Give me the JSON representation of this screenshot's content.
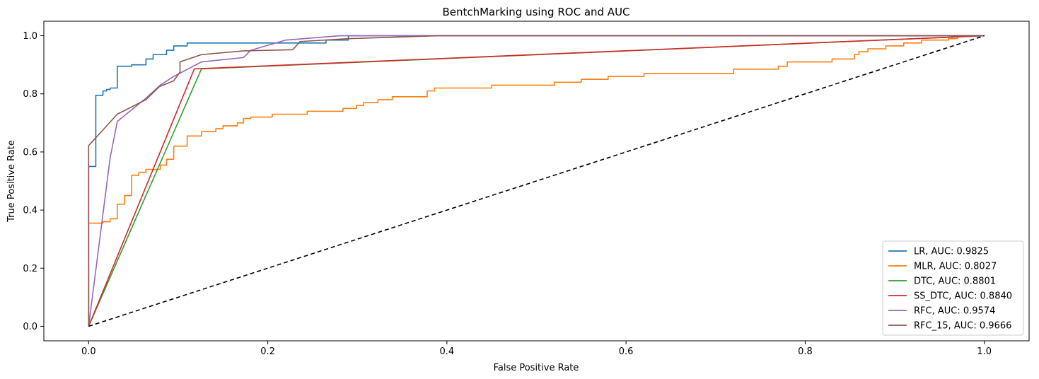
{
  "chart_data": {
    "type": "line",
    "title": "BentchMarking using ROC and AUC",
    "xlabel": "False Positive Rate",
    "ylabel": "True Positive Rate",
    "xlim": [
      -0.05,
      1.05
    ],
    "ylim": [
      -0.05,
      1.05
    ],
    "xticks": [
      0.0,
      0.2,
      0.4,
      0.6,
      0.8,
      1.0
    ],
    "xtick_labels": [
      "0.0",
      "0.2",
      "0.4",
      "0.6",
      "0.8",
      "1.0"
    ],
    "yticks": [
      0.0,
      0.2,
      0.4,
      0.6,
      0.8,
      1.0
    ],
    "ytick_labels": [
      "0.0",
      "0.2",
      "0.4",
      "0.6",
      "0.8",
      "1.0"
    ],
    "grid": false,
    "legend_position": "lower right",
    "reference_line": {
      "x": [
        0,
        1
      ],
      "y": [
        0,
        1
      ],
      "color": "#000000",
      "style": "dashed"
    },
    "series": [
      {
        "name": "LR, AUC: 0.9825",
        "color": "#1f77b4",
        "step": true,
        "points": [
          [
            0,
            0
          ],
          [
            0,
            0.55
          ],
          [
            0.008,
            0.55
          ],
          [
            0.008,
            0.795
          ],
          [
            0.016,
            0.795
          ],
          [
            0.016,
            0.81
          ],
          [
            0.02,
            0.81
          ],
          [
            0.02,
            0.815
          ],
          [
            0.024,
            0.815
          ],
          [
            0.024,
            0.82
          ],
          [
            0.032,
            0.82
          ],
          [
            0.032,
            0.895
          ],
          [
            0.048,
            0.895
          ],
          [
            0.048,
            0.9
          ],
          [
            0.064,
            0.9
          ],
          [
            0.064,
            0.92
          ],
          [
            0.072,
            0.92
          ],
          [
            0.072,
            0.935
          ],
          [
            0.087,
            0.935
          ],
          [
            0.087,
            0.95
          ],
          [
            0.095,
            0.95
          ],
          [
            0.095,
            0.965
          ],
          [
            0.11,
            0.965
          ],
          [
            0.11,
            0.975
          ],
          [
            0.265,
            0.975
          ],
          [
            0.265,
            0.985
          ],
          [
            0.29,
            0.985
          ],
          [
            0.29,
            1.0
          ],
          [
            1.0,
            1.0
          ]
        ]
      },
      {
        "name": "MLR, AUC: 0.8027",
        "color": "#ff7f0e",
        "step": true,
        "points": [
          [
            0,
            0
          ],
          [
            0,
            0.355
          ],
          [
            0.016,
            0.355
          ],
          [
            0.016,
            0.36
          ],
          [
            0.024,
            0.36
          ],
          [
            0.024,
            0.37
          ],
          [
            0.032,
            0.37
          ],
          [
            0.032,
            0.42
          ],
          [
            0.04,
            0.42
          ],
          [
            0.04,
            0.45
          ],
          [
            0.048,
            0.45
          ],
          [
            0.048,
            0.52
          ],
          [
            0.056,
            0.52
          ],
          [
            0.056,
            0.53
          ],
          [
            0.064,
            0.53
          ],
          [
            0.064,
            0.54
          ],
          [
            0.08,
            0.54
          ],
          [
            0.08,
            0.555
          ],
          [
            0.087,
            0.555
          ],
          [
            0.087,
            0.575
          ],
          [
            0.095,
            0.575
          ],
          [
            0.095,
            0.62
          ],
          [
            0.11,
            0.62
          ],
          [
            0.11,
            0.655
          ],
          [
            0.126,
            0.655
          ],
          [
            0.126,
            0.67
          ],
          [
            0.142,
            0.67
          ],
          [
            0.142,
            0.68
          ],
          [
            0.15,
            0.68
          ],
          [
            0.15,
            0.69
          ],
          [
            0.166,
            0.69
          ],
          [
            0.166,
            0.7
          ],
          [
            0.173,
            0.7
          ],
          [
            0.173,
            0.715
          ],
          [
            0.181,
            0.715
          ],
          [
            0.181,
            0.72
          ],
          [
            0.205,
            0.72
          ],
          [
            0.205,
            0.73
          ],
          [
            0.244,
            0.73
          ],
          [
            0.244,
            0.74
          ],
          [
            0.284,
            0.74
          ],
          [
            0.284,
            0.75
          ],
          [
            0.299,
            0.75
          ],
          [
            0.299,
            0.76
          ],
          [
            0.307,
            0.76
          ],
          [
            0.307,
            0.77
          ],
          [
            0.323,
            0.77
          ],
          [
            0.323,
            0.78
          ],
          [
            0.339,
            0.78
          ],
          [
            0.339,
            0.79
          ],
          [
            0.378,
            0.79
          ],
          [
            0.378,
            0.81
          ],
          [
            0.386,
            0.81
          ],
          [
            0.386,
            0.82
          ],
          [
            0.45,
            0.82
          ],
          [
            0.45,
            0.83
          ],
          [
            0.52,
            0.83
          ],
          [
            0.52,
            0.84
          ],
          [
            0.55,
            0.84
          ],
          [
            0.55,
            0.85
          ],
          [
            0.58,
            0.85
          ],
          [
            0.58,
            0.86
          ],
          [
            0.62,
            0.86
          ],
          [
            0.62,
            0.87
          ],
          [
            0.72,
            0.87
          ],
          [
            0.72,
            0.885
          ],
          [
            0.77,
            0.885
          ],
          [
            0.77,
            0.895
          ],
          [
            0.78,
            0.895
          ],
          [
            0.78,
            0.91
          ],
          [
            0.83,
            0.91
          ],
          [
            0.83,
            0.92
          ],
          [
            0.855,
            0.92
          ],
          [
            0.855,
            0.935
          ],
          [
            0.86,
            0.935
          ],
          [
            0.86,
            0.945
          ],
          [
            0.87,
            0.945
          ],
          [
            0.87,
            0.955
          ],
          [
            0.89,
            0.955
          ],
          [
            0.89,
            0.965
          ],
          [
            0.91,
            0.965
          ],
          [
            0.91,
            0.975
          ],
          [
            0.93,
            0.975
          ],
          [
            0.93,
            0.985
          ],
          [
            0.96,
            0.985
          ],
          [
            0.96,
            0.99
          ],
          [
            0.97,
            0.99
          ],
          [
            0.97,
            1.0
          ],
          [
            1.0,
            1.0
          ]
        ]
      },
      {
        "name": "DTC, AUC: 0.8801",
        "color": "#2ca02c",
        "step": false,
        "points": [
          [
            0,
            0
          ],
          [
            0.126,
            0.886
          ],
          [
            1.0,
            1.0
          ]
        ]
      },
      {
        "name": "SS_DTC, AUC: 0.8840",
        "color": "#d62728",
        "step": false,
        "points": [
          [
            0,
            0
          ],
          [
            0.118,
            0.886
          ],
          [
            1.0,
            1.0
          ]
        ]
      },
      {
        "name": "RFC, AUC: 0.9574",
        "color": "#9467bd",
        "step": false,
        "points": [
          [
            0,
            0
          ],
          [
            0.024,
            0.58
          ],
          [
            0.032,
            0.705
          ],
          [
            0.064,
            0.785
          ],
          [
            0.08,
            0.83
          ],
          [
            0.095,
            0.86
          ],
          [
            0.126,
            0.91
          ],
          [
            0.173,
            0.925
          ],
          [
            0.181,
            0.95
          ],
          [
            0.22,
            0.985
          ],
          [
            0.24,
            0.99
          ],
          [
            0.28,
            1.0
          ],
          [
            1.0,
            1.0
          ]
        ]
      },
      {
        "name": "RFC_15, AUC: 0.9666",
        "color": "#8c564b",
        "step": false,
        "points": [
          [
            0,
            0
          ],
          [
            0,
            0.622
          ],
          [
            0.032,
            0.73
          ],
          [
            0.064,
            0.78
          ],
          [
            0.079,
            0.825
          ],
          [
            0.095,
            0.845
          ],
          [
            0.102,
            0.875
          ],
          [
            0.102,
            0.91
          ],
          [
            0.126,
            0.935
          ],
          [
            0.173,
            0.948
          ],
          [
            0.228,
            0.952
          ],
          [
            0.236,
            0.98
          ],
          [
            0.29,
            0.99
          ],
          [
            0.39,
            1.0
          ],
          [
            1.0,
            1.0
          ]
        ]
      }
    ]
  }
}
